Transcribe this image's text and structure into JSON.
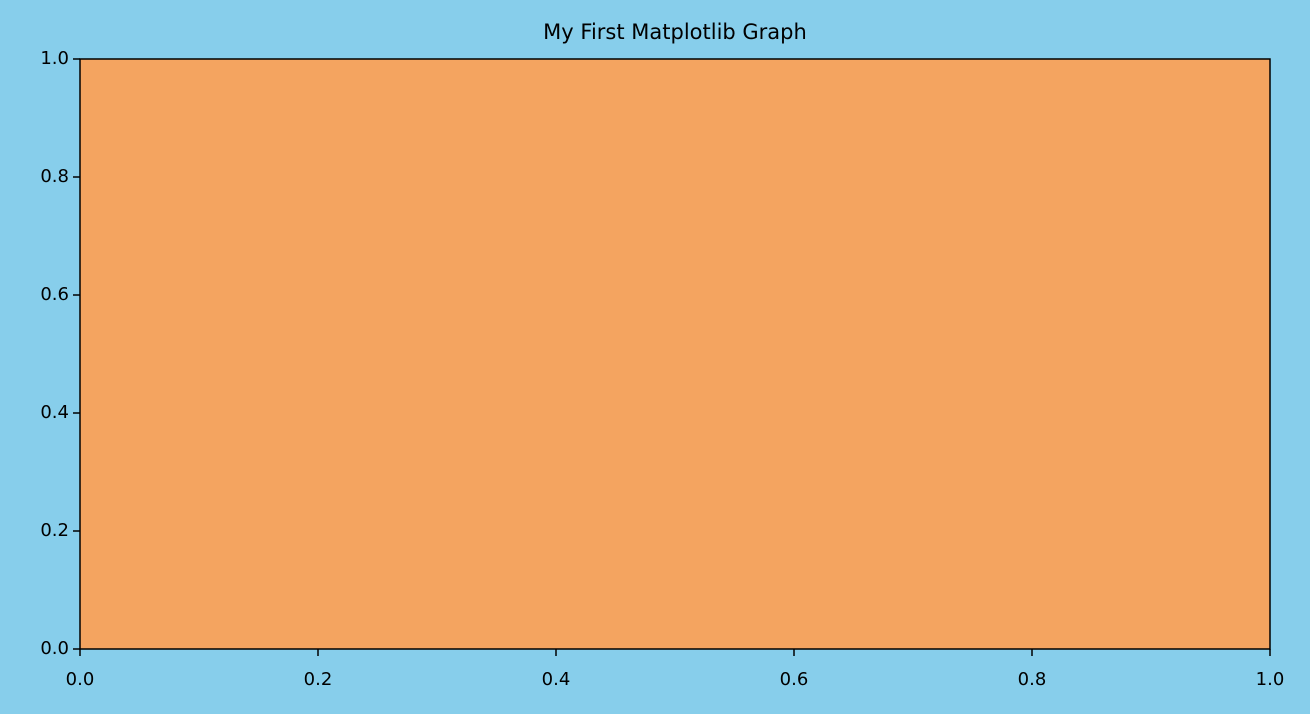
{
  "chart_data": {
    "type": "line",
    "title": "My First Matplotlib Graph",
    "series": [],
    "xlim": [
      0,
      1
    ],
    "ylim": [
      0,
      1
    ],
    "xticks": [
      {
        "value": 0,
        "label": "0.0"
      },
      0.2,
      0.4,
      0.6,
      0.8,
      {
        "value": 1,
        "label": "1.0"
      }
    ],
    "yticks": [
      {
        "value": 0,
        "label": "0.0"
      },
      0.2,
      0.4,
      0.6,
      0.8,
      {
        "value": 1,
        "label": "1.0"
      }
    ],
    "grid": false,
    "background": "#87ceeb",
    "facecolor": "#f4a460"
  }
}
